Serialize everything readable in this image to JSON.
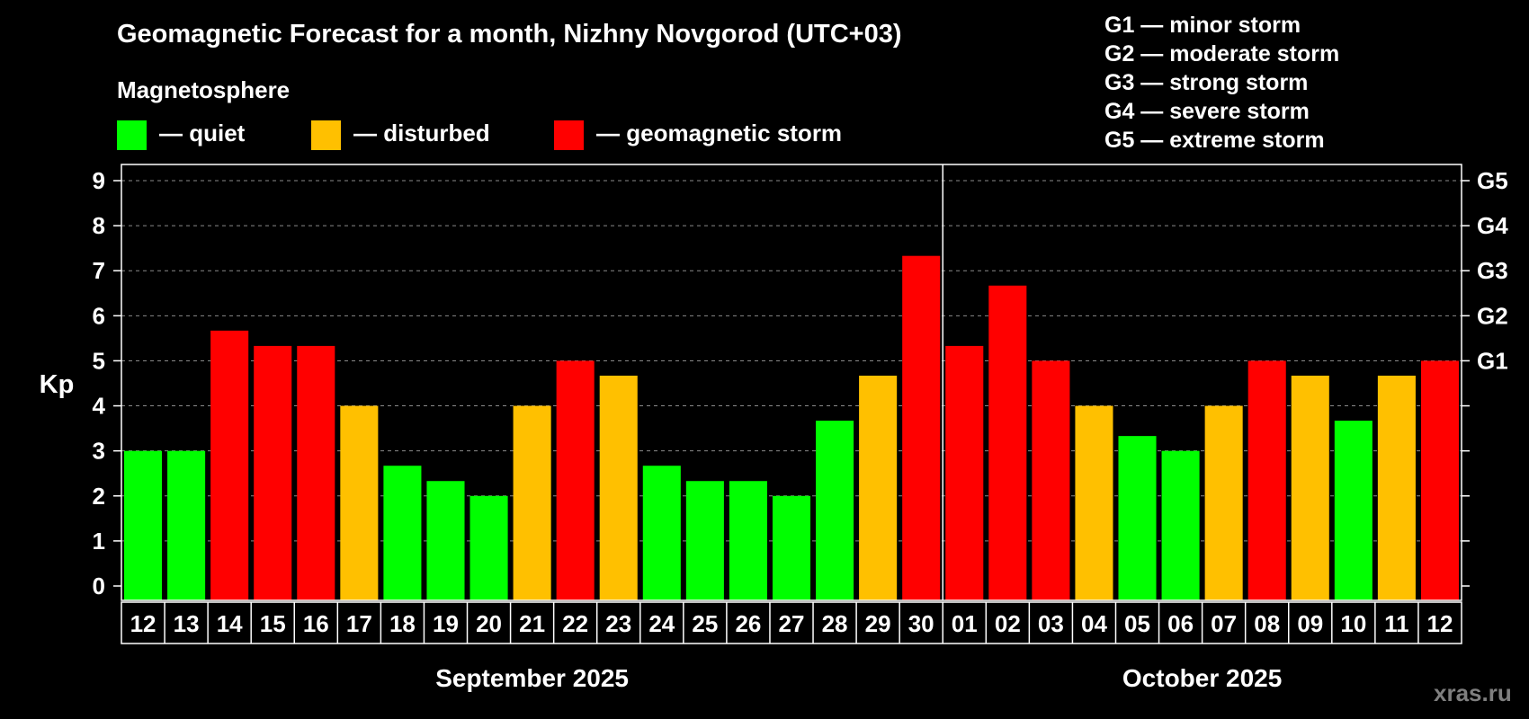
{
  "title": "Geomagnetic Forecast for a month, Nizhny Novgorod (UTC+03)",
  "legend": {
    "heading": "Magnetosphere",
    "items": [
      {
        "label": "— quiet",
        "color": "#00ff00"
      },
      {
        "label": "— disturbed",
        "color": "#ffc000"
      },
      {
        "label": "— geomagnetic storm",
        "color": "#ff0000"
      }
    ]
  },
  "g_scale": [
    "G1 — minor storm",
    "G2 — moderate storm",
    "G3 — strong storm",
    "G4 — severe storm",
    "G5 — extreme storm"
  ],
  "watermark": "xras.ru",
  "chart_data": {
    "type": "bar",
    "title": "Geomagnetic Forecast for a month, Nizhny Novgorod (UTC+03)",
    "ylabel": "Kp",
    "ylim": [
      0,
      9
    ],
    "yticks": [
      0,
      1,
      2,
      3,
      4,
      5,
      6,
      7,
      8,
      9
    ],
    "grid": true,
    "right_axis_labels": [
      {
        "value": 5,
        "label": "G1"
      },
      {
        "value": 6,
        "label": "G2"
      },
      {
        "value": 7,
        "label": "G3"
      },
      {
        "value": 8,
        "label": "G4"
      },
      {
        "value": 9,
        "label": "G5"
      }
    ],
    "categories": [
      "12",
      "13",
      "14",
      "15",
      "16",
      "17",
      "18",
      "19",
      "20",
      "21",
      "22",
      "23",
      "24",
      "25",
      "26",
      "27",
      "28",
      "29",
      "30",
      "01",
      "02",
      "03",
      "04",
      "05",
      "06",
      "07",
      "08",
      "09",
      "10",
      "11",
      "12"
    ],
    "values": [
      3,
      3,
      5.67,
      5.33,
      5.33,
      4,
      2.67,
      2.33,
      2,
      4,
      5,
      4.67,
      2.67,
      2.33,
      2.33,
      2,
      3.67,
      4.67,
      7.33,
      5.33,
      6.67,
      5,
      4,
      3.33,
      3,
      4,
      5,
      4.67,
      3.67,
      4.67,
      5
    ],
    "status": [
      "quiet",
      "quiet",
      "storm",
      "storm",
      "storm",
      "disturbed",
      "quiet",
      "quiet",
      "quiet",
      "disturbed",
      "storm",
      "disturbed",
      "quiet",
      "quiet",
      "quiet",
      "quiet",
      "quiet",
      "disturbed",
      "storm",
      "storm",
      "storm",
      "storm",
      "disturbed",
      "quiet",
      "quiet",
      "disturbed",
      "storm",
      "disturbed",
      "quiet",
      "disturbed",
      "storm"
    ],
    "status_colors": {
      "quiet": "#00ff00",
      "disturbed": "#ffc000",
      "storm": "#ff0000"
    },
    "months": [
      {
        "label": "September 2025",
        "start_index": 0,
        "count": 19
      },
      {
        "label": "October 2025",
        "start_index": 19,
        "count": 12
      }
    ]
  }
}
